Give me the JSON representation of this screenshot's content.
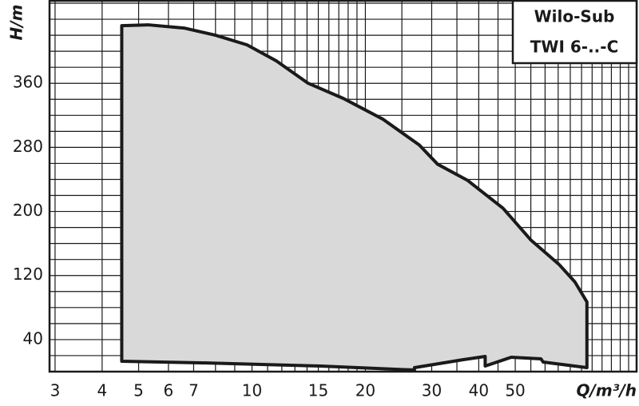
{
  "chart_data": {
    "type": "area",
    "title": [
      "Wilo-Sub",
      "TWI 6-..-C"
    ],
    "x_label": "Q/m³/h",
    "y_label": "H/m",
    "x_scale": "log",
    "xlim": [
      2.9,
      105
    ],
    "ylim": [
      0,
      464
    ],
    "xticks": [
      3,
      4,
      5,
      6,
      7,
      10,
      15,
      20,
      30,
      40,
      50
    ],
    "yticks": [
      40,
      120,
      200,
      280,
      360
    ],
    "x_grid": [
      3,
      4,
      5,
      6,
      7,
      8,
      9,
      10,
      11,
      12,
      13,
      14,
      15,
      16,
      17,
      18,
      19,
      20,
      25,
      30,
      35,
      40,
      45,
      50,
      55,
      60,
      65,
      70,
      75,
      80,
      85,
      90,
      95,
      100
    ],
    "y_grid": [
      20,
      40,
      60,
      80,
      100,
      120,
      140,
      160,
      180,
      200,
      220,
      240,
      260,
      280,
      300,
      320,
      340,
      360,
      380,
      400,
      420,
      440,
      460
    ],
    "grid": true,
    "series": [
      {
        "color": "#d9d9d9",
        "x": [
          4.51,
          5.3,
          6.6,
          8.0,
          9.7,
          11.6,
          14.1,
          17.5,
          22.3,
          27.8,
          31.1,
          37.3,
          46.4,
          55.1,
          65.3,
          72,
          77.5,
          77.5,
          59.3,
          58.5,
          48.8,
          41.6,
          41.6,
          36.4,
          27.0,
          27.0,
          15.2,
          7.3,
          4.51
        ],
        "values": [
          432,
          433,
          429,
          420,
          408,
          388,
          360,
          341,
          315,
          283,
          259,
          239,
          204,
          164,
          134,
          112,
          87,
          5,
          12,
          16,
          18,
          7,
          19,
          15,
          5,
          2,
          7,
          11,
          13
        ]
      }
    ]
  }
}
